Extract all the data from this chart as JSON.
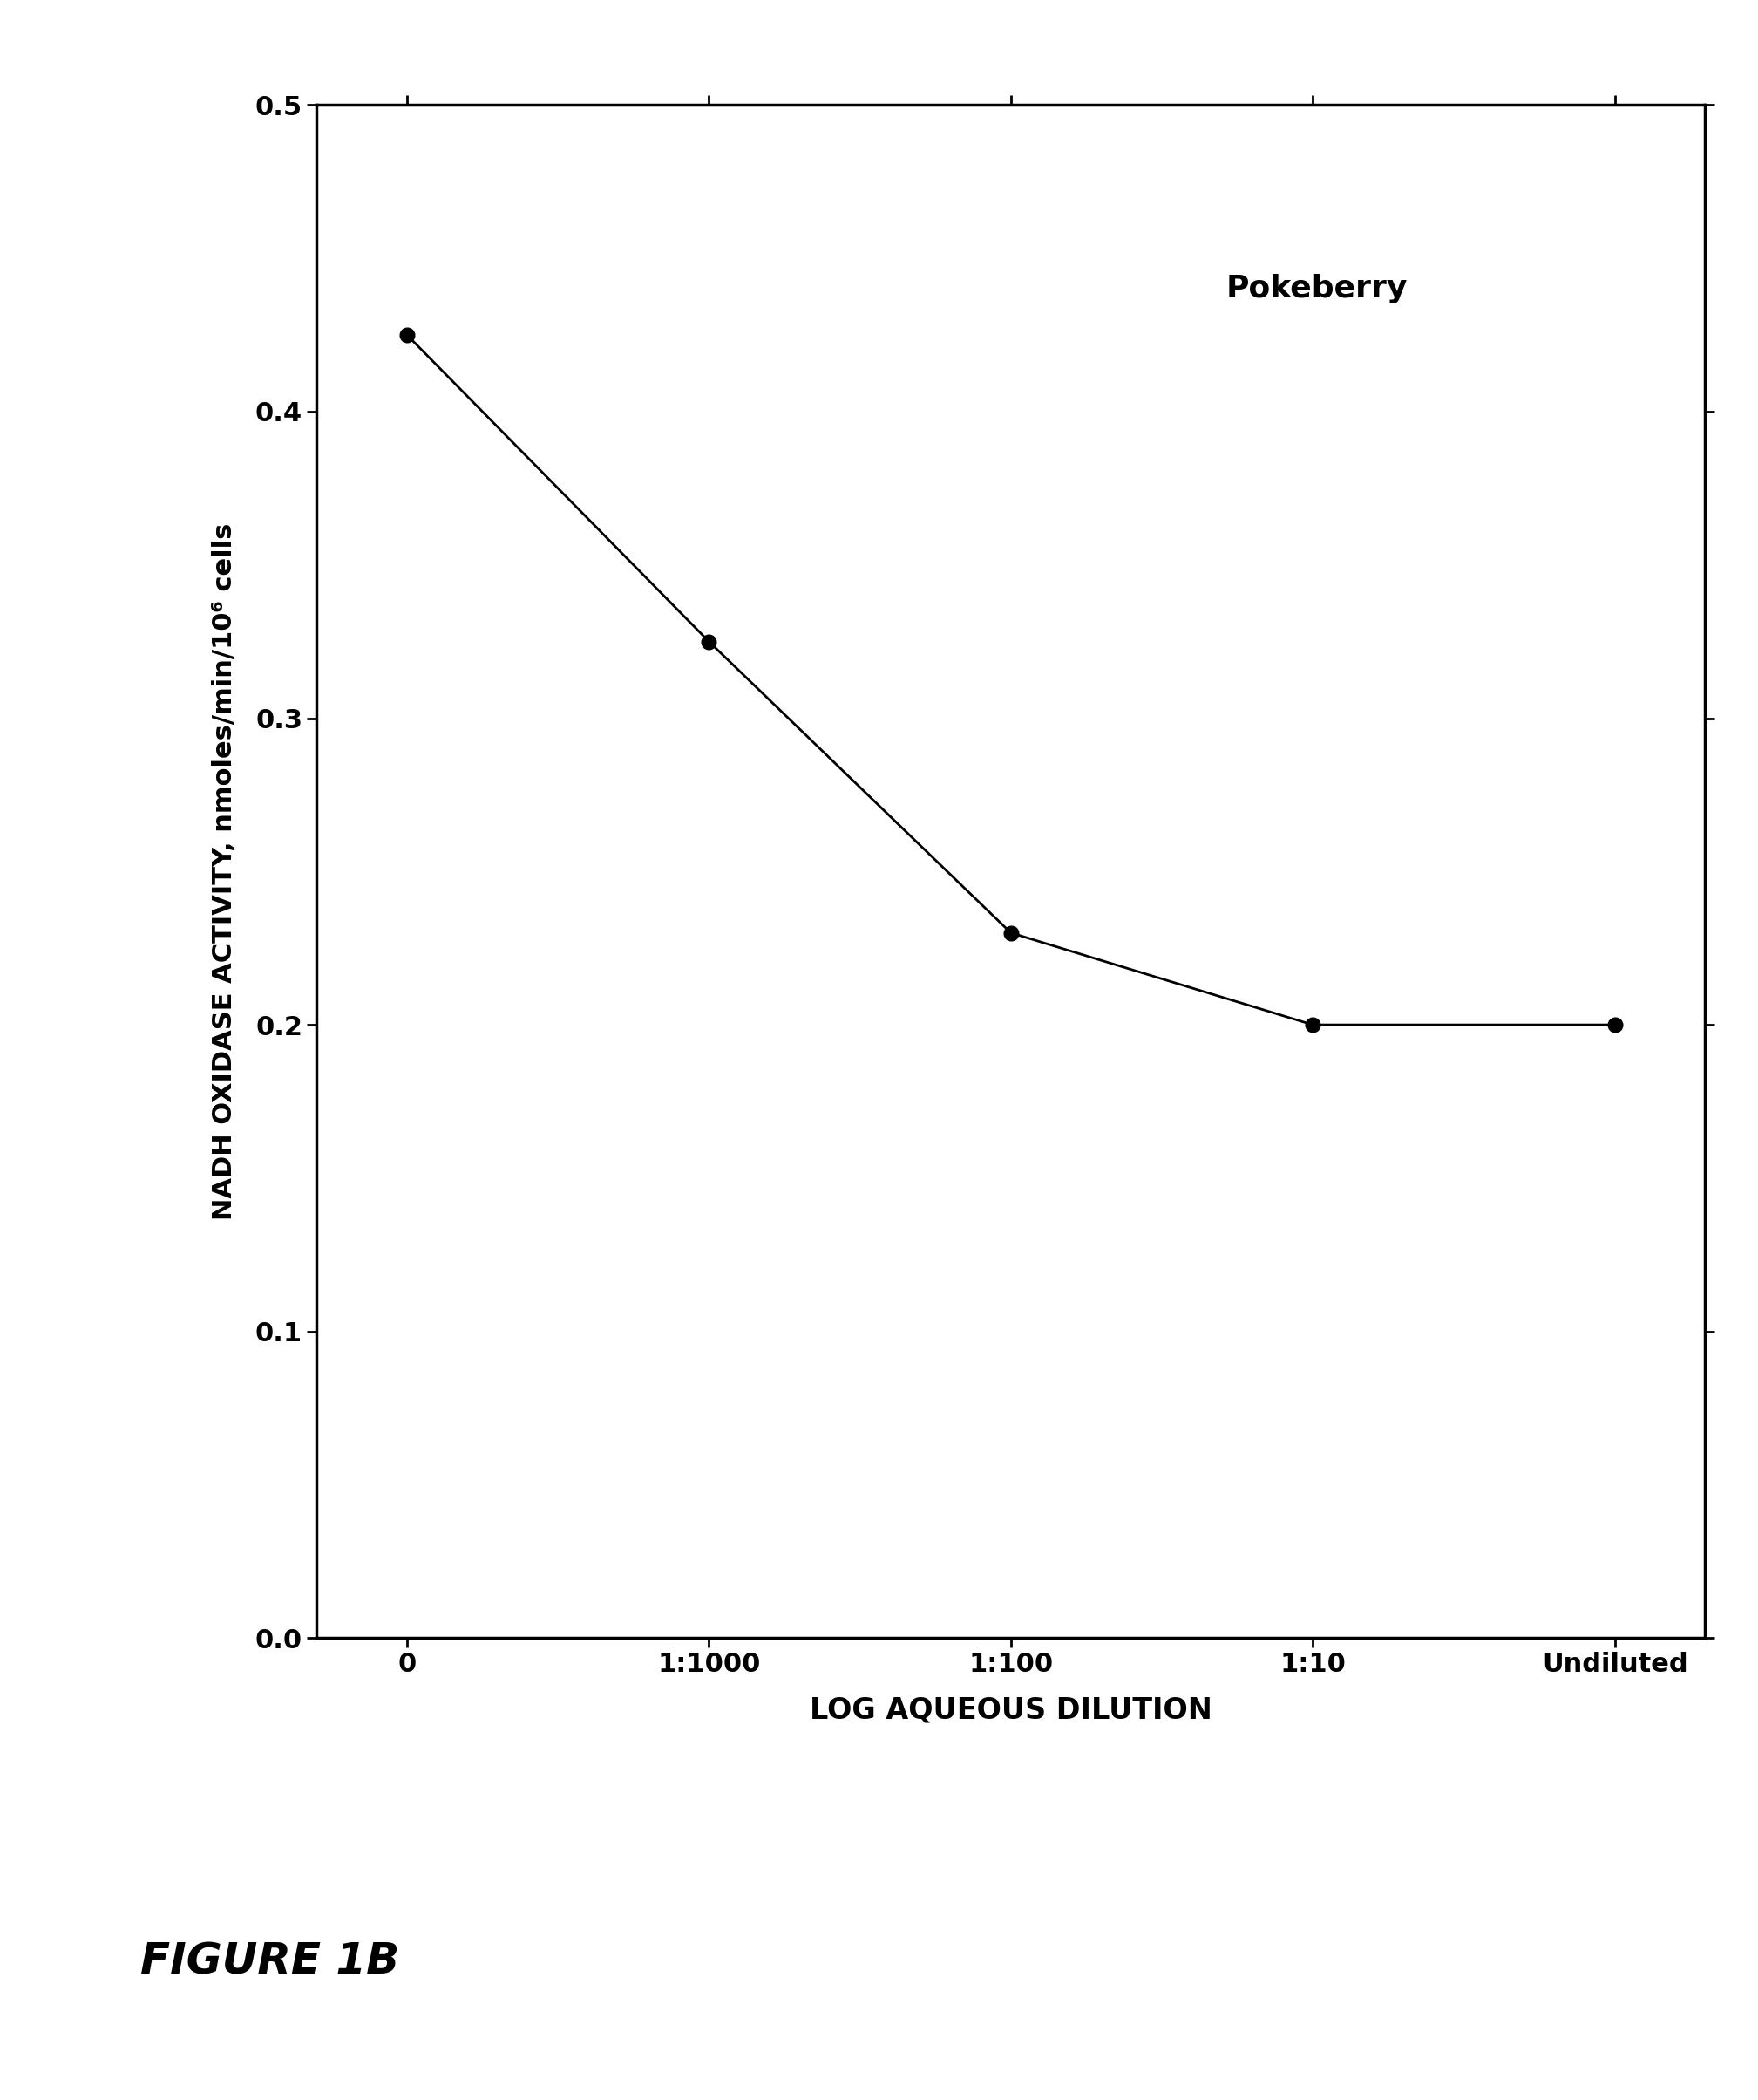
{
  "title": "Pokeberry",
  "xlabel": "LOG AQUEOUS DILUTION",
  "ylabel": "NADH OXIDASE ACTIVITY, nmoles/min/10⁶ cells",
  "x_positions": [
    0,
    1,
    2,
    3,
    4
  ],
  "x_tick_labels": [
    "0",
    "1:1000",
    "1:100",
    "1:10",
    "Undiluted"
  ],
  "y_values": [
    0.425,
    0.325,
    0.23,
    0.2,
    0.2
  ],
  "ylim": [
    0.0,
    0.5
  ],
  "yticks": [
    0.0,
    0.1,
    0.2,
    0.3,
    0.4,
    0.5
  ],
  "line_color": "#000000",
  "marker_color": "#000000",
  "marker_size": 12,
  "line_width": 2.0,
  "background_color": "#ffffff",
  "figure_label": "FIGURE 1B",
  "annotation_label_fontsize": 22,
  "ylabel_fontsize": 22,
  "xlabel_fontsize": 24,
  "tick_fontsize": 22,
  "title_fontsize": 26
}
